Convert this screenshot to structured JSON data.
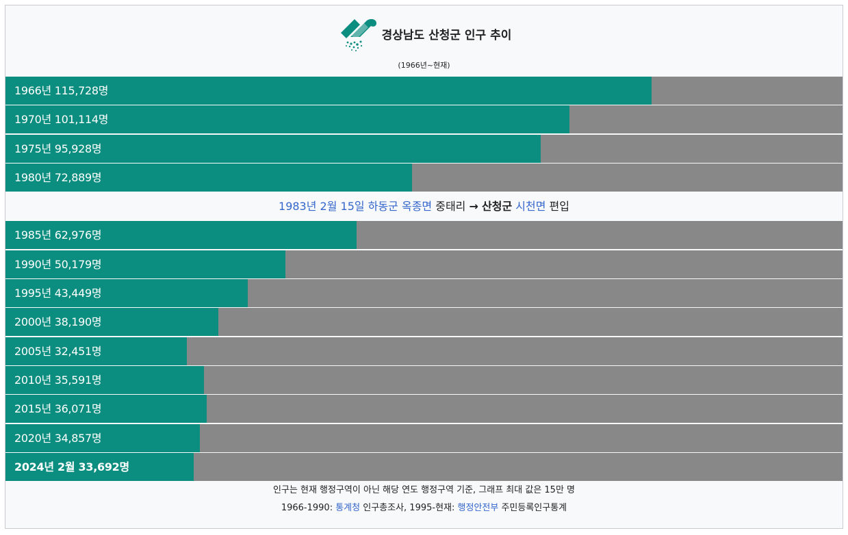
{
  "title": "경상남도 산청군 인구 추이",
  "subtitle": "(1966년~현재)",
  "logo_icon": "sancheong-county-emblem-icon",
  "colors": {
    "bar": "#0b8d7f",
    "track": "#888888",
    "link": "#3366cc",
    "background": "#f8f9fa"
  },
  "chart_data": {
    "type": "bar",
    "orientation": "horizontal",
    "title": "경상남도 산청군 인구 추이",
    "subtitle": "(1966년~현재)",
    "xlim": [
      0,
      150000
    ],
    "unit": "명",
    "rows": [
      {
        "label": "1966년 115,728명",
        "year": "1966",
        "value": 115728
      },
      {
        "label": "1970년 101,114명",
        "year": "1970",
        "value": 101114
      },
      {
        "label": "1975년 95,928명",
        "year": "1975",
        "value": 95928
      },
      {
        "label": "1980년 72,889명",
        "year": "1980",
        "value": 72889
      },
      {
        "label": "1985년 62,976명",
        "year": "1985",
        "value": 62976
      },
      {
        "label": "1990년 50,179명",
        "year": "1990",
        "value": 50179
      },
      {
        "label": "1995년 43,449명",
        "year": "1995",
        "value": 43449
      },
      {
        "label": "2000년 38,190명",
        "year": "2000",
        "value": 38190
      },
      {
        "label": "2005년 32,451명",
        "year": "2005",
        "value": 32451
      },
      {
        "label": "2010년 35,591명",
        "year": "2010",
        "value": 35591
      },
      {
        "label": "2015년 36,071명",
        "year": "2015",
        "value": 36071
      },
      {
        "label": "2020년 34,857명",
        "year": "2020",
        "value": 34857
      },
      {
        "label": "2024년 2월 33,692명",
        "year": "2024년 2월",
        "value": 33692,
        "bold": true
      }
    ]
  },
  "note": {
    "date": "1983년 2월 15일",
    "from_county": "하동군",
    "from_town": "옥종면",
    "village": "중태리",
    "arrow": "→",
    "to_county": "산청군",
    "to_town": "시천면",
    "action": "편입"
  },
  "footer": {
    "line1": "인구는 현재 행정구역이 아닌 해당 연도 행정구역 기준, 그래프 최대 값은 15만 명",
    "line2_prefix": "1966-1990: ",
    "source1": "통계청",
    "line2_mid": " 인구총조사, 1995-현재: ",
    "source2": "행정안전부",
    "line2_suffix": " 주민등록인구통계"
  }
}
